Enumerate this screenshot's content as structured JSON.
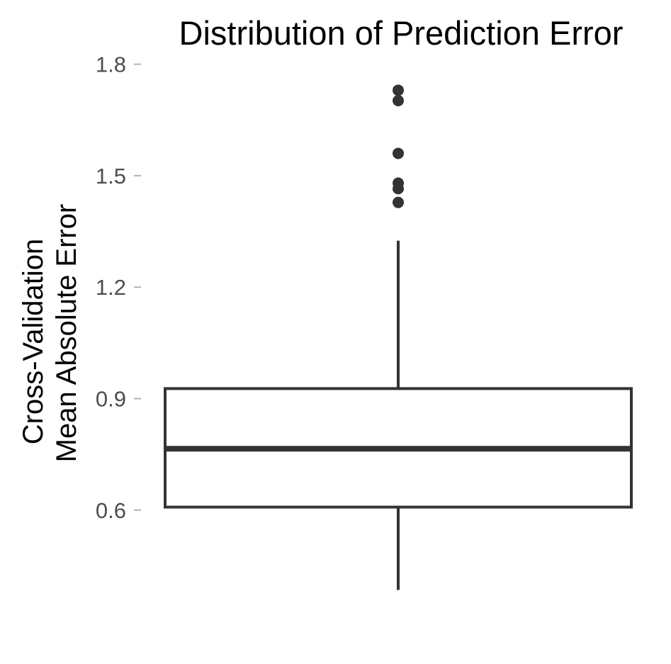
{
  "chart_data": {
    "type": "box",
    "title": "Distribution of Prediction Error",
    "ylabel_lines": [
      "Cross-Validation",
      "Mean Absolute Error"
    ],
    "xlabel": "",
    "ylim": [
      0.365,
      1.805
    ],
    "yticks": [
      0.6,
      0.9,
      1.2,
      1.5,
      1.8
    ],
    "ytick_labels": [
      "0.6",
      "0.9",
      "1.2",
      "1.5",
      "1.8"
    ],
    "grid": false,
    "legend": "none",
    "box": {
      "whisker_low": 0.385,
      "q1": 0.608,
      "median": 0.765,
      "q3": 0.927,
      "whisker_high": 1.325
    },
    "outliers": [
      1.428,
      1.465,
      1.48,
      1.56,
      1.702,
      1.73
    ],
    "colors": {
      "line": "#333333",
      "tick_text": "#4d4d4d",
      "tick_mark": "#b3b3b3",
      "text": "#000000"
    }
  }
}
